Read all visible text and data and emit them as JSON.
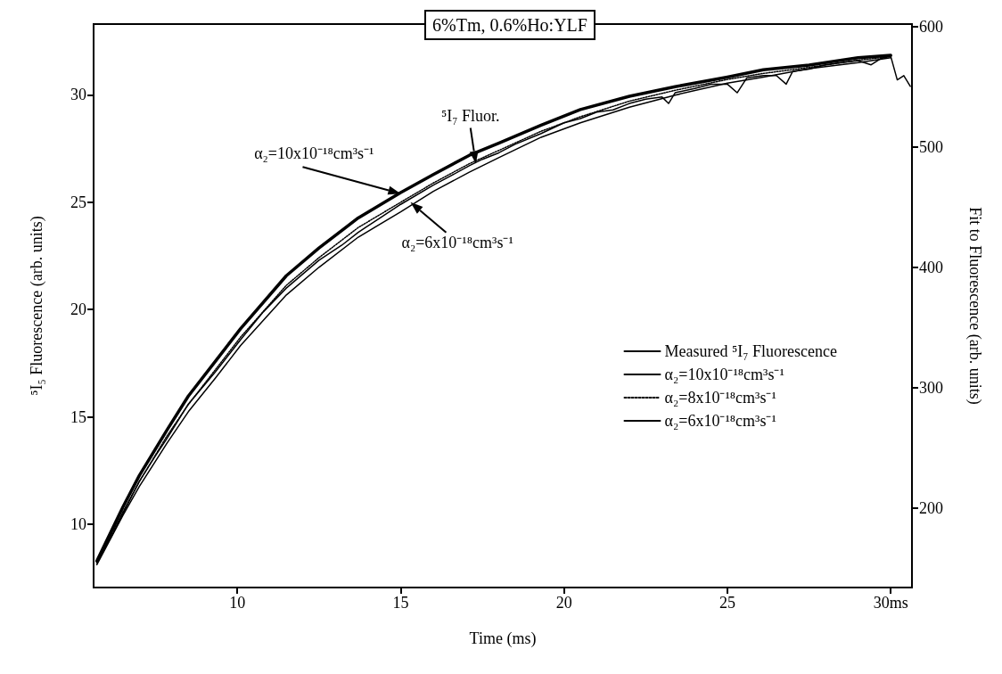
{
  "chart_data": {
    "type": "line",
    "title": "6%Tm, 0.6%Ho:YLF",
    "xlabel": "Time (ms)",
    "ylabel": "⁵I₅ Fluorescence (arb. units)",
    "y2label": "Fit to Fluorescence (arb. units)",
    "xlim": [
      5.6,
      30.65
    ],
    "xticks": [
      10,
      15,
      20,
      25,
      {
        "value": 30,
        "label": "30ms"
      }
    ],
    "ylim": [
      7.05,
      33.3
    ],
    "yticks": [
      10,
      15,
      20,
      25,
      30
    ],
    "y2lim": [
      134,
      602
    ],
    "y2ticks": [
      200,
      300,
      400,
      500,
      600
    ],
    "grid": false,
    "legend": "right",
    "marker": "none",
    "annotations": [
      {
        "text": "⁵I₇ Fluor.",
        "x": 17.3,
        "y": 26.8
      },
      {
        "text": "α₂=10x10⁻¹⁸cm³s⁻¹",
        "x": 15,
        "y": 25.4
      },
      {
        "text": "α₂=6x10⁻¹⁸cm³s⁻¹",
        "x": 15.3,
        "y": 25.0
      }
    ],
    "series": [
      {
        "name": "Measured ⁵I₇ Fluorescence",
        "color": "#000000",
        "line_style": "solid",
        "x": [
          5.7,
          6.2,
          6.5,
          7,
          7.5,
          7.85,
          8.5,
          9,
          9.33,
          10.1,
          10.8,
          11.5,
          12.5,
          13.2,
          13.7,
          14.3,
          15,
          16,
          16.5,
          17.1,
          17.5,
          18,
          18.5,
          19.3,
          20,
          20.5,
          21,
          21.5,
          22,
          22.5,
          23,
          23.2,
          23.4,
          24,
          24.5,
          25,
          25.3,
          25.6,
          26.1,
          26.5,
          26.8,
          27,
          27.5,
          28,
          28.5,
          29,
          29.4,
          29.7,
          30,
          30.2,
          30.4,
          30.6
        ],
        "values": [
          8.2,
          9.6,
          10.5,
          12.0,
          13.2,
          14.0,
          15.6,
          16.5,
          17.1,
          18.6,
          19.9,
          21.0,
          22.3,
          23.0,
          23.6,
          24.2,
          24.9,
          25.8,
          26.2,
          26.7,
          27.0,
          27.3,
          27.7,
          28.2,
          28.7,
          28.9,
          29.2,
          29.3,
          29.6,
          29.8,
          29.9,
          29.6,
          30.1,
          30.3,
          30.5,
          30.5,
          30.1,
          30.8,
          30.9,
          30.9,
          30.5,
          31.1,
          31.2,
          31.4,
          31.5,
          31.6,
          31.4,
          31.7,
          31.8,
          30.7,
          30.9,
          30.4
        ]
      },
      {
        "name": "α₂=10x10⁻¹⁸cm³s⁻¹",
        "color": "#000000",
        "line_style": "solid",
        "axis": "y2",
        "x": [
          5.7,
          6.5,
          7,
          7.85,
          8.5,
          9.33,
          10.1,
          11.5,
          12.5,
          13.7,
          15,
          16,
          17.1,
          18,
          19.3,
          20.5,
          22,
          23.4,
          25,
          26.1,
          27.5,
          29,
          30
        ],
        "values": [
          156,
          201,
          227,
          265,
          293,
          322,
          349,
          393,
          416,
          441,
          462,
          477,
          493,
          503,
          518,
          531,
          542,
          550,
          558,
          564,
          568,
          574,
          576
        ]
      },
      {
        "name": "α₂=8x10⁻¹⁸cm³s⁻¹",
        "color": "#000000",
        "line_style": "dotted",
        "axis": "y2",
        "x": [
          5.7,
          6.5,
          7,
          7.85,
          8.5,
          9.33,
          10.1,
          11.5,
          12.5,
          13.7,
          15,
          16,
          17.1,
          18,
          19.3,
          20.5,
          22,
          23.4,
          25,
          26.1,
          27.5,
          29,
          30
        ],
        "values": [
          155,
          197,
          222,
          260,
          286,
          315,
          342,
          385,
          408,
          433,
          454,
          470,
          486,
          497,
          513,
          525,
          538,
          547,
          556,
          561,
          566,
          572,
          575
        ]
      },
      {
        "name": "α₂=6x10⁻¹⁸cm³s⁻¹",
        "color": "#000000",
        "line_style": "solid",
        "axis": "y2",
        "x": [
          5.7,
          6.5,
          7,
          7.85,
          8.5,
          9.33,
          10.1,
          11.5,
          12.5,
          13.7,
          15,
          16,
          17.1,
          18,
          19.3,
          20.5,
          22,
          23.4,
          25,
          26.1,
          27.5,
          29,
          30
        ],
        "values": [
          153,
          194,
          218,
          254,
          280,
          308,
          335,
          377,
          400,
          425,
          446,
          463,
          479,
          491,
          508,
          520,
          533,
          543,
          553,
          558,
          565,
          570,
          574
        ]
      }
    ]
  }
}
